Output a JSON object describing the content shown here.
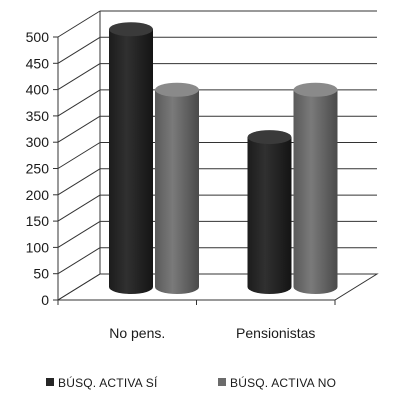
{
  "chart_data": {
    "type": "bar",
    "categories": [
      "No pens.",
      "Pensionistas"
    ],
    "series": [
      {
        "name": "BÚSQ. ACTIVA SÍ",
        "values": [
          490,
          285
        ],
        "color": "#262626"
      },
      {
        "name": "BÚSQ. ACTIVA NO",
        "values": [
          375,
          375
        ],
        "color": "#6b6b6b"
      }
    ],
    "title": "",
    "xlabel": "",
    "ylabel": "",
    "ylim": [
      0,
      500
    ],
    "yticks": [
      0,
      50,
      100,
      150,
      200,
      250,
      300,
      350,
      400,
      450,
      500
    ],
    "grid": true,
    "legend_position": "bottom",
    "style": "3d-cylinder"
  }
}
